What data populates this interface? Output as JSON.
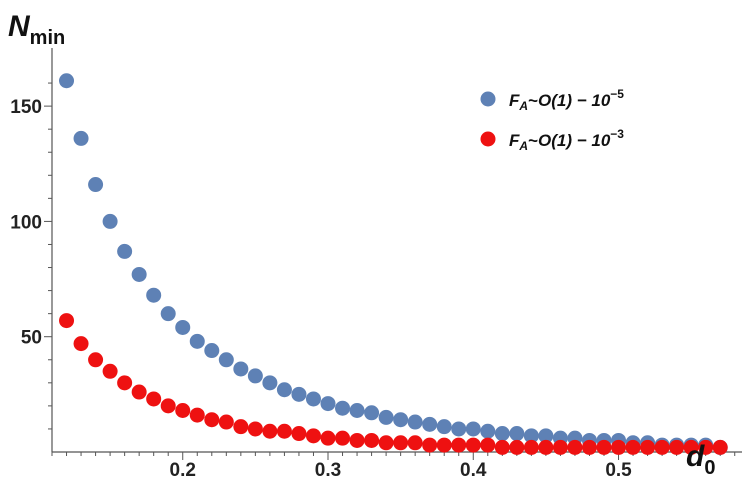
{
  "chart_data": {
    "type": "scatter",
    "title": "",
    "xlabel": {
      "main": "d",
      "sub": "0"
    },
    "ylabel": {
      "main": "N",
      "sub": "min"
    },
    "xlim": [
      0.11,
      0.585
    ],
    "ylim": [
      0,
      170
    ],
    "xticks": [
      0.2,
      0.3,
      0.4,
      0.5
    ],
    "xtick_labels": [
      "0.2",
      "0.3",
      "0.4",
      "0.5"
    ],
    "yticks": [
      50,
      100,
      150
    ],
    "ytick_labels": [
      "50",
      "100",
      "150"
    ],
    "grid": false,
    "legend_position": "top-right",
    "series": [
      {
        "name": {
          "a": "F",
          "b": "A",
          "c": "~",
          "d": "O(1) − 10",
          "e": "−5"
        },
        "color": "#5e81b5",
        "x": [
          0.12,
          0.13,
          0.14,
          0.15,
          0.16,
          0.17,
          0.18,
          0.19,
          0.2,
          0.21,
          0.22,
          0.23,
          0.24,
          0.25,
          0.26,
          0.27,
          0.28,
          0.29,
          0.3,
          0.31,
          0.32,
          0.33,
          0.34,
          0.35,
          0.36,
          0.37,
          0.38,
          0.39,
          0.4,
          0.41,
          0.42,
          0.43,
          0.44,
          0.45,
          0.46,
          0.47,
          0.48,
          0.49,
          0.5,
          0.51,
          0.52,
          0.53,
          0.54,
          0.55,
          0.56,
          0.57
        ],
        "y": [
          161,
          136,
          116,
          100,
          87,
          77,
          68,
          60,
          54,
          48,
          44,
          40,
          36,
          33,
          30,
          27,
          25,
          23,
          21,
          19,
          18,
          17,
          15,
          14,
          13,
          12,
          11,
          10,
          10,
          9,
          8,
          8,
          7,
          7,
          6,
          6,
          5,
          5,
          5,
          4,
          4,
          3,
          3,
          3,
          3,
          2
        ]
      },
      {
        "name": {
          "a": "F",
          "b": "A",
          "c": "~",
          "d": "O(1) − 10",
          "e": "−3"
        },
        "color": "#ee1111",
        "x": [
          0.12,
          0.13,
          0.14,
          0.15,
          0.16,
          0.17,
          0.18,
          0.19,
          0.2,
          0.21,
          0.22,
          0.23,
          0.24,
          0.25,
          0.26,
          0.27,
          0.28,
          0.29,
          0.3,
          0.31,
          0.32,
          0.33,
          0.34,
          0.35,
          0.36,
          0.37,
          0.38,
          0.39,
          0.4,
          0.41,
          0.42,
          0.43,
          0.44,
          0.45,
          0.46,
          0.47,
          0.48,
          0.49,
          0.5,
          0.51,
          0.52,
          0.53,
          0.54,
          0.55,
          0.56,
          0.57
        ],
        "y": [
          57,
          47,
          40,
          35,
          30,
          26,
          23,
          20,
          18,
          16,
          14,
          13,
          11,
          10,
          9,
          9,
          8,
          7,
          6,
          6,
          5,
          5,
          4,
          4,
          4,
          3,
          3,
          3,
          3,
          3,
          2,
          2,
          2,
          2,
          2,
          2,
          2,
          2,
          2,
          2,
          2,
          2,
          2,
          2,
          2,
          2
        ]
      }
    ]
  }
}
